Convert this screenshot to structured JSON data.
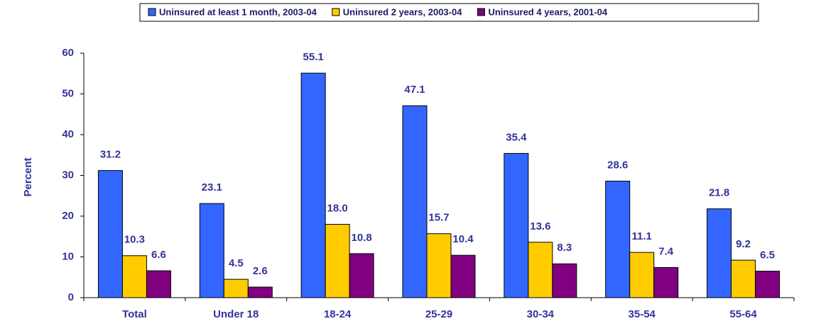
{
  "chart_data": {
    "type": "bar",
    "categories": [
      "Total",
      "Under 18",
      "18-24",
      "25-29",
      "30-34",
      "35-54",
      "55-64"
    ],
    "y_label": "Percent",
    "ylim": [
      0,
      60
    ],
    "yticks": [
      0,
      10,
      20,
      30,
      40,
      50,
      60
    ],
    "legend": "top",
    "series": [
      {
        "name": "Uninsured at least 1 month, 2003-04",
        "color": "#3366ff",
        "values": [
          31.2,
          23.1,
          55.1,
          47.1,
          35.4,
          28.6,
          21.8
        ],
        "value_labels": [
          "31.2",
          "23.1",
          "55.1",
          "47.1",
          "35.4",
          "28.6",
          "21.8"
        ]
      },
      {
        "name": "Uninsured 2 years, 2003-04",
        "color": "#ffcc00",
        "values": [
          10.3,
          4.5,
          18.0,
          15.7,
          13.6,
          11.1,
          9.2
        ],
        "value_labels": [
          "10.3",
          "4.5",
          "18.0",
          "15.7",
          "13.6",
          "11.1",
          "9.2"
        ]
      },
      {
        "name": "Uninsured 4 years, 2001-04",
        "color": "#800080",
        "values": [
          6.6,
          2.6,
          10.8,
          10.4,
          8.3,
          7.4,
          6.5
        ],
        "value_labels": [
          "6.6",
          "2.6",
          "10.8",
          "10.4",
          "8.3",
          "7.4",
          "6.5"
        ]
      }
    ]
  }
}
